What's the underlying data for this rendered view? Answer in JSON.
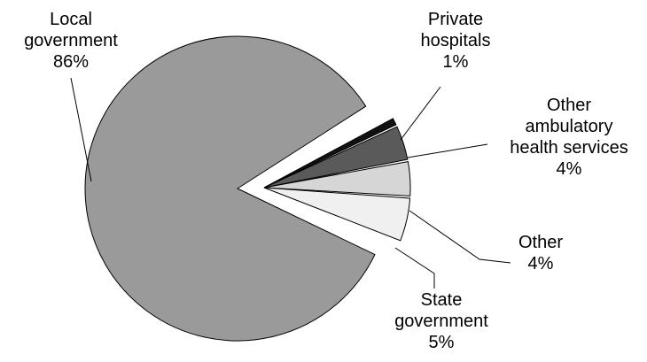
{
  "chart_data": {
    "type": "pie",
    "title": "",
    "exploded": true,
    "slices": [
      {
        "label_lines": [
          "Local",
          "government"
        ],
        "value_text": "86%",
        "value": 86,
        "color": "#9a9a9a"
      },
      {
        "label_lines": [
          "Private",
          "hospitals"
        ],
        "value_text": "1%",
        "value": 1,
        "color": "#111111"
      },
      {
        "label_lines": [
          "Other",
          "ambulatory",
          "health services"
        ],
        "value_text": "4%",
        "value": 4,
        "color": "#5a5a5a"
      },
      {
        "label_lines": [
          "Other"
        ],
        "value_text": "4%",
        "value": 4,
        "color": "#d6d6d6"
      },
      {
        "label_lines": [
          "State",
          "government"
        ],
        "value_text": "5%",
        "value": 5,
        "color": "#f0f0f0"
      }
    ]
  }
}
